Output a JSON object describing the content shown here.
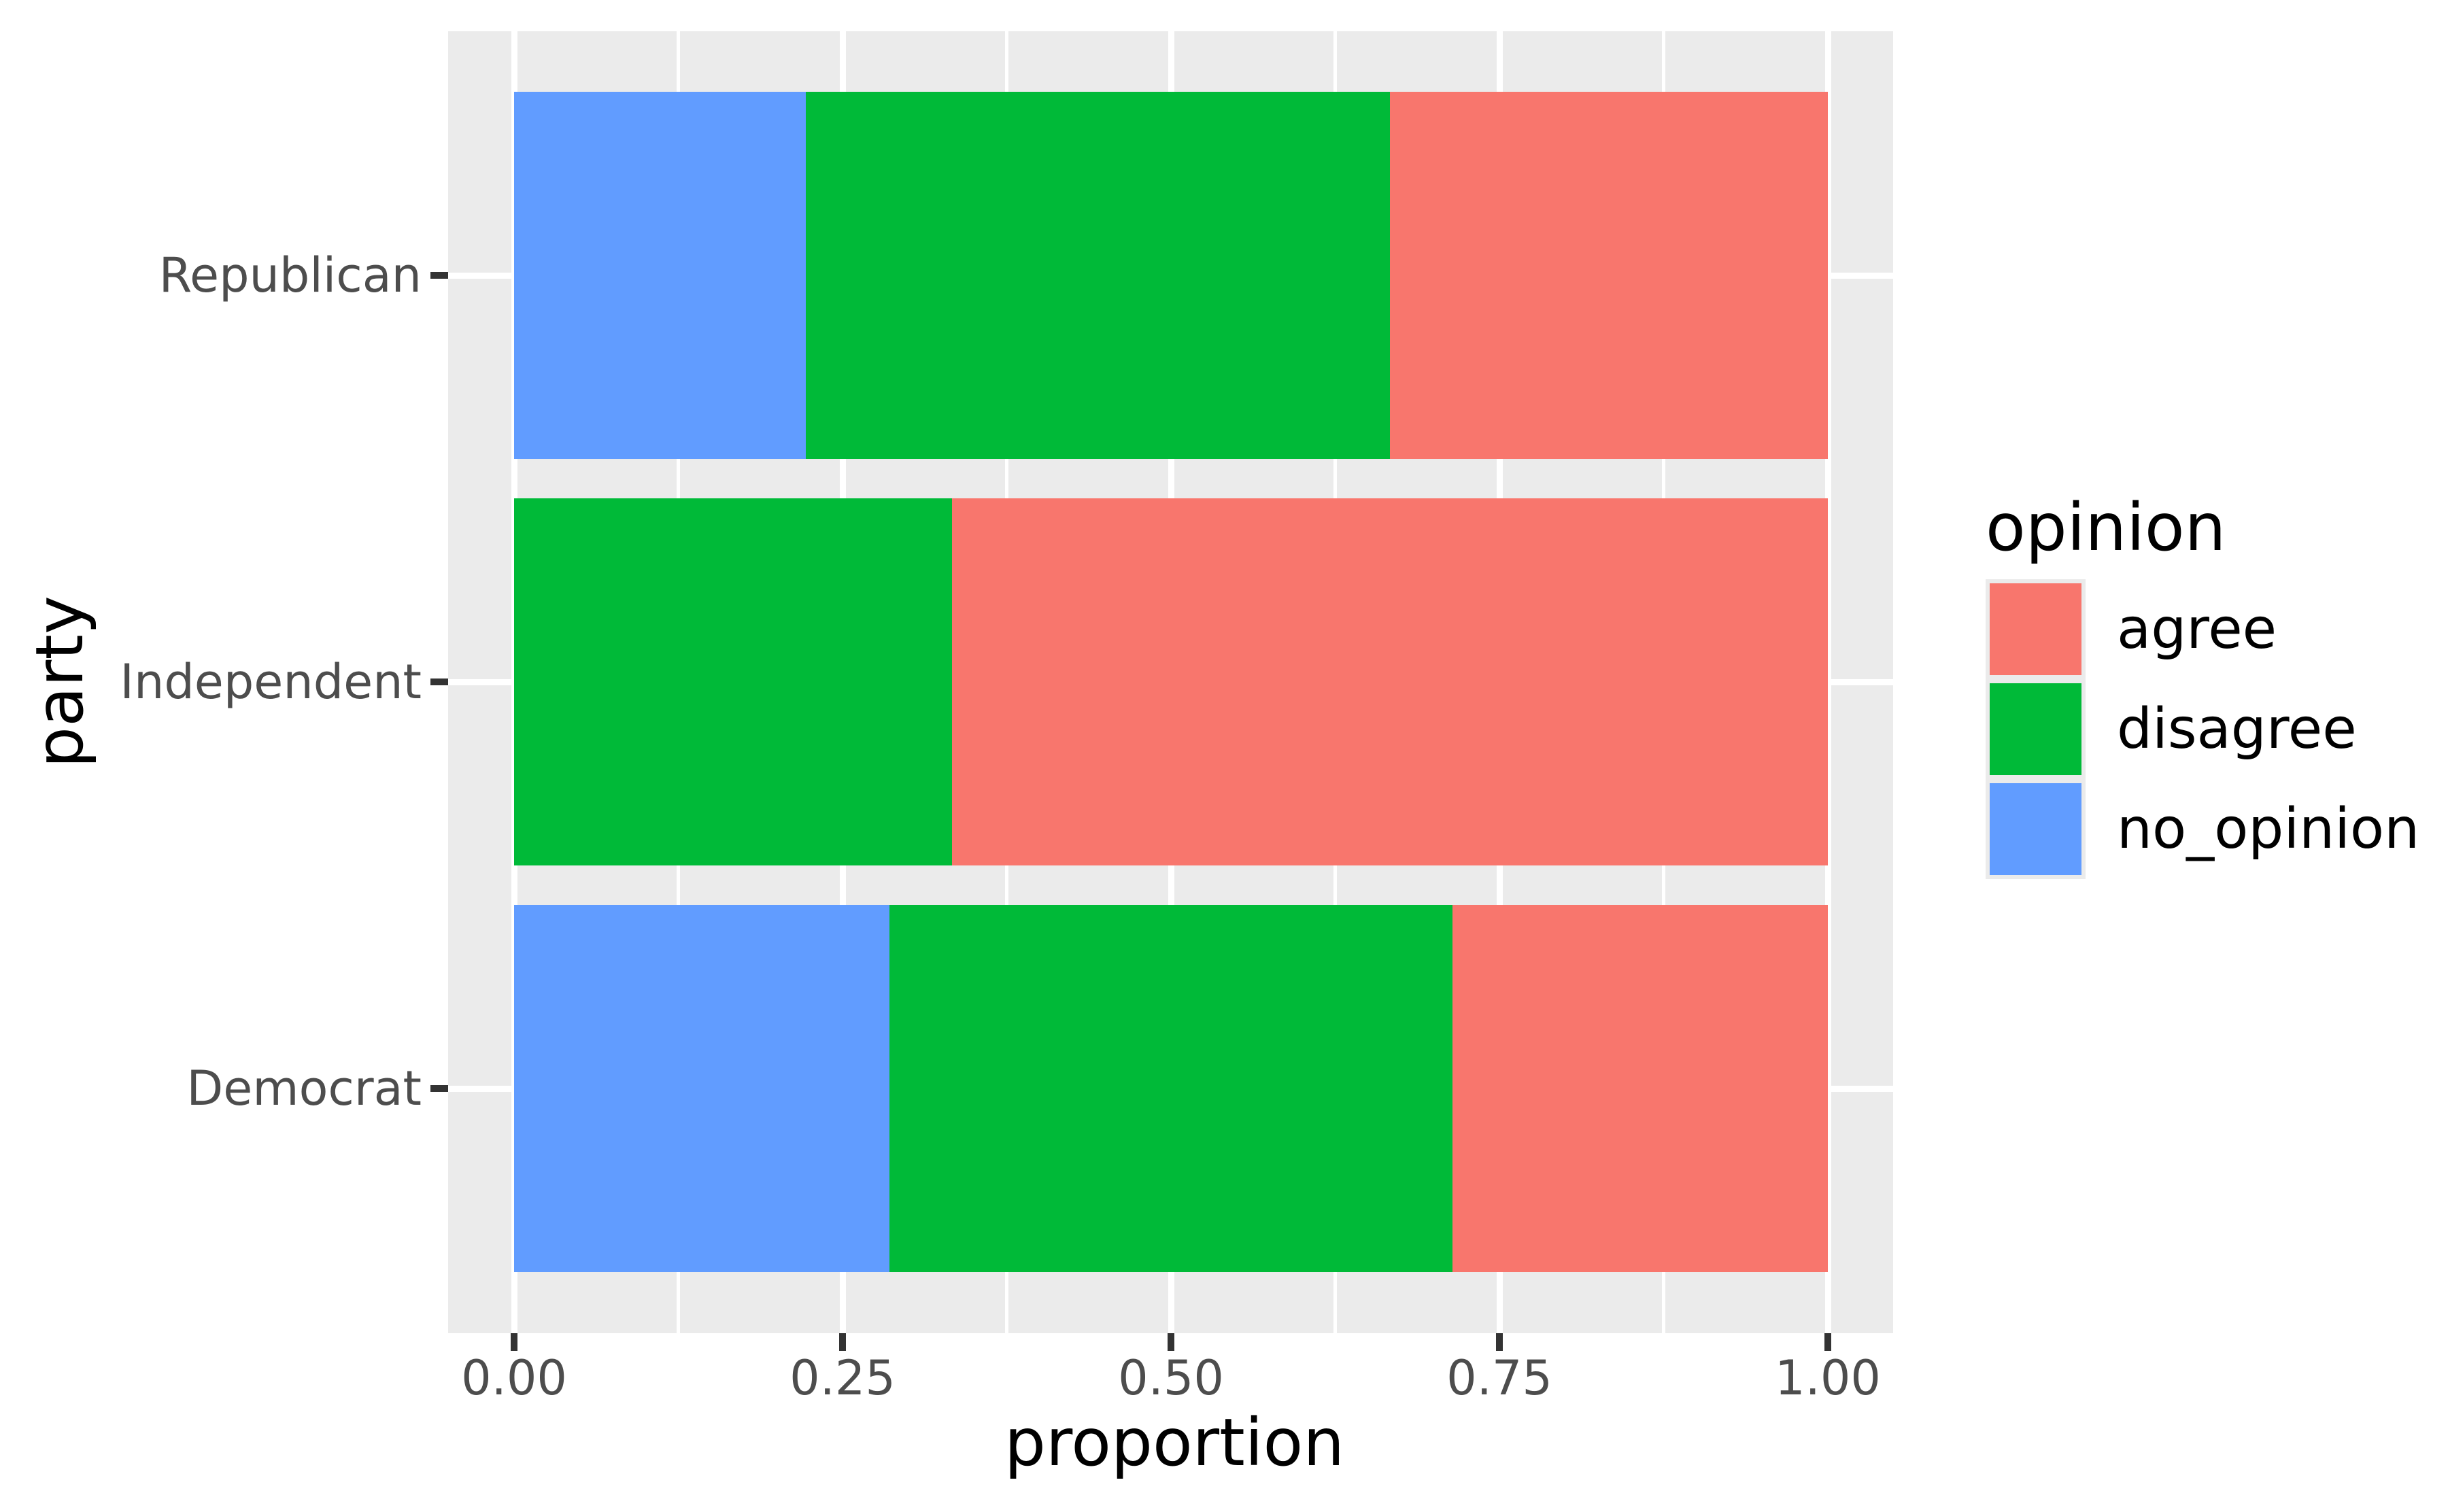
{
  "figure": {
    "background": "#ffffff"
  },
  "axes": {
    "x_title": "proportion",
    "y_title": "party",
    "x_tick_labels": [
      "0.00",
      "0.25",
      "0.50",
      "0.75",
      "1.00"
    ],
    "y_category_labels": [
      "Republican",
      "Independent",
      "Democrat"
    ]
  },
  "legend": {
    "title": "opinion",
    "entries": [
      {
        "label": "agree",
        "color": "#F8766D"
      },
      {
        "label": "disagree",
        "color": "#00BA38"
      },
      {
        "label": "no_opinion",
        "color": "#619CFF"
      }
    ]
  },
  "chart_data": {
    "type": "bar",
    "orientation": "horizontal",
    "stacked": true,
    "xlabel": "proportion",
    "ylabel": "party",
    "xlim": [
      0,
      1
    ],
    "grid": "on",
    "legend_position": "right",
    "categories": [
      "Republican",
      "Independent",
      "Democrat"
    ],
    "series": [
      {
        "name": "agree",
        "color": "#F8766D",
        "values": [
          0.3333,
          0.6667,
          0.2857
        ]
      },
      {
        "name": "disagree",
        "color": "#00BA38",
        "values": [
          0.4444,
          0.3333,
          0.4286
        ]
      },
      {
        "name": "no_opinion",
        "color": "#619CFF",
        "values": [
          0.2222,
          0.0,
          0.2857
        ]
      }
    ],
    "stack_order_from_axis": [
      "no_opinion",
      "disagree",
      "agree"
    ],
    "x_tick_values": [
      0,
      0.25,
      0.5,
      0.75,
      1
    ],
    "x_minor_tick_values": [
      0.125,
      0.375,
      0.625,
      0.875
    ],
    "theme": {
      "panel_background": "#EBEBEB",
      "gridline_color": "#FFFFFF",
      "tick_color": "#333333",
      "axis_text_color": "#4D4D4D",
      "title_text_color": "#000000"
    }
  }
}
